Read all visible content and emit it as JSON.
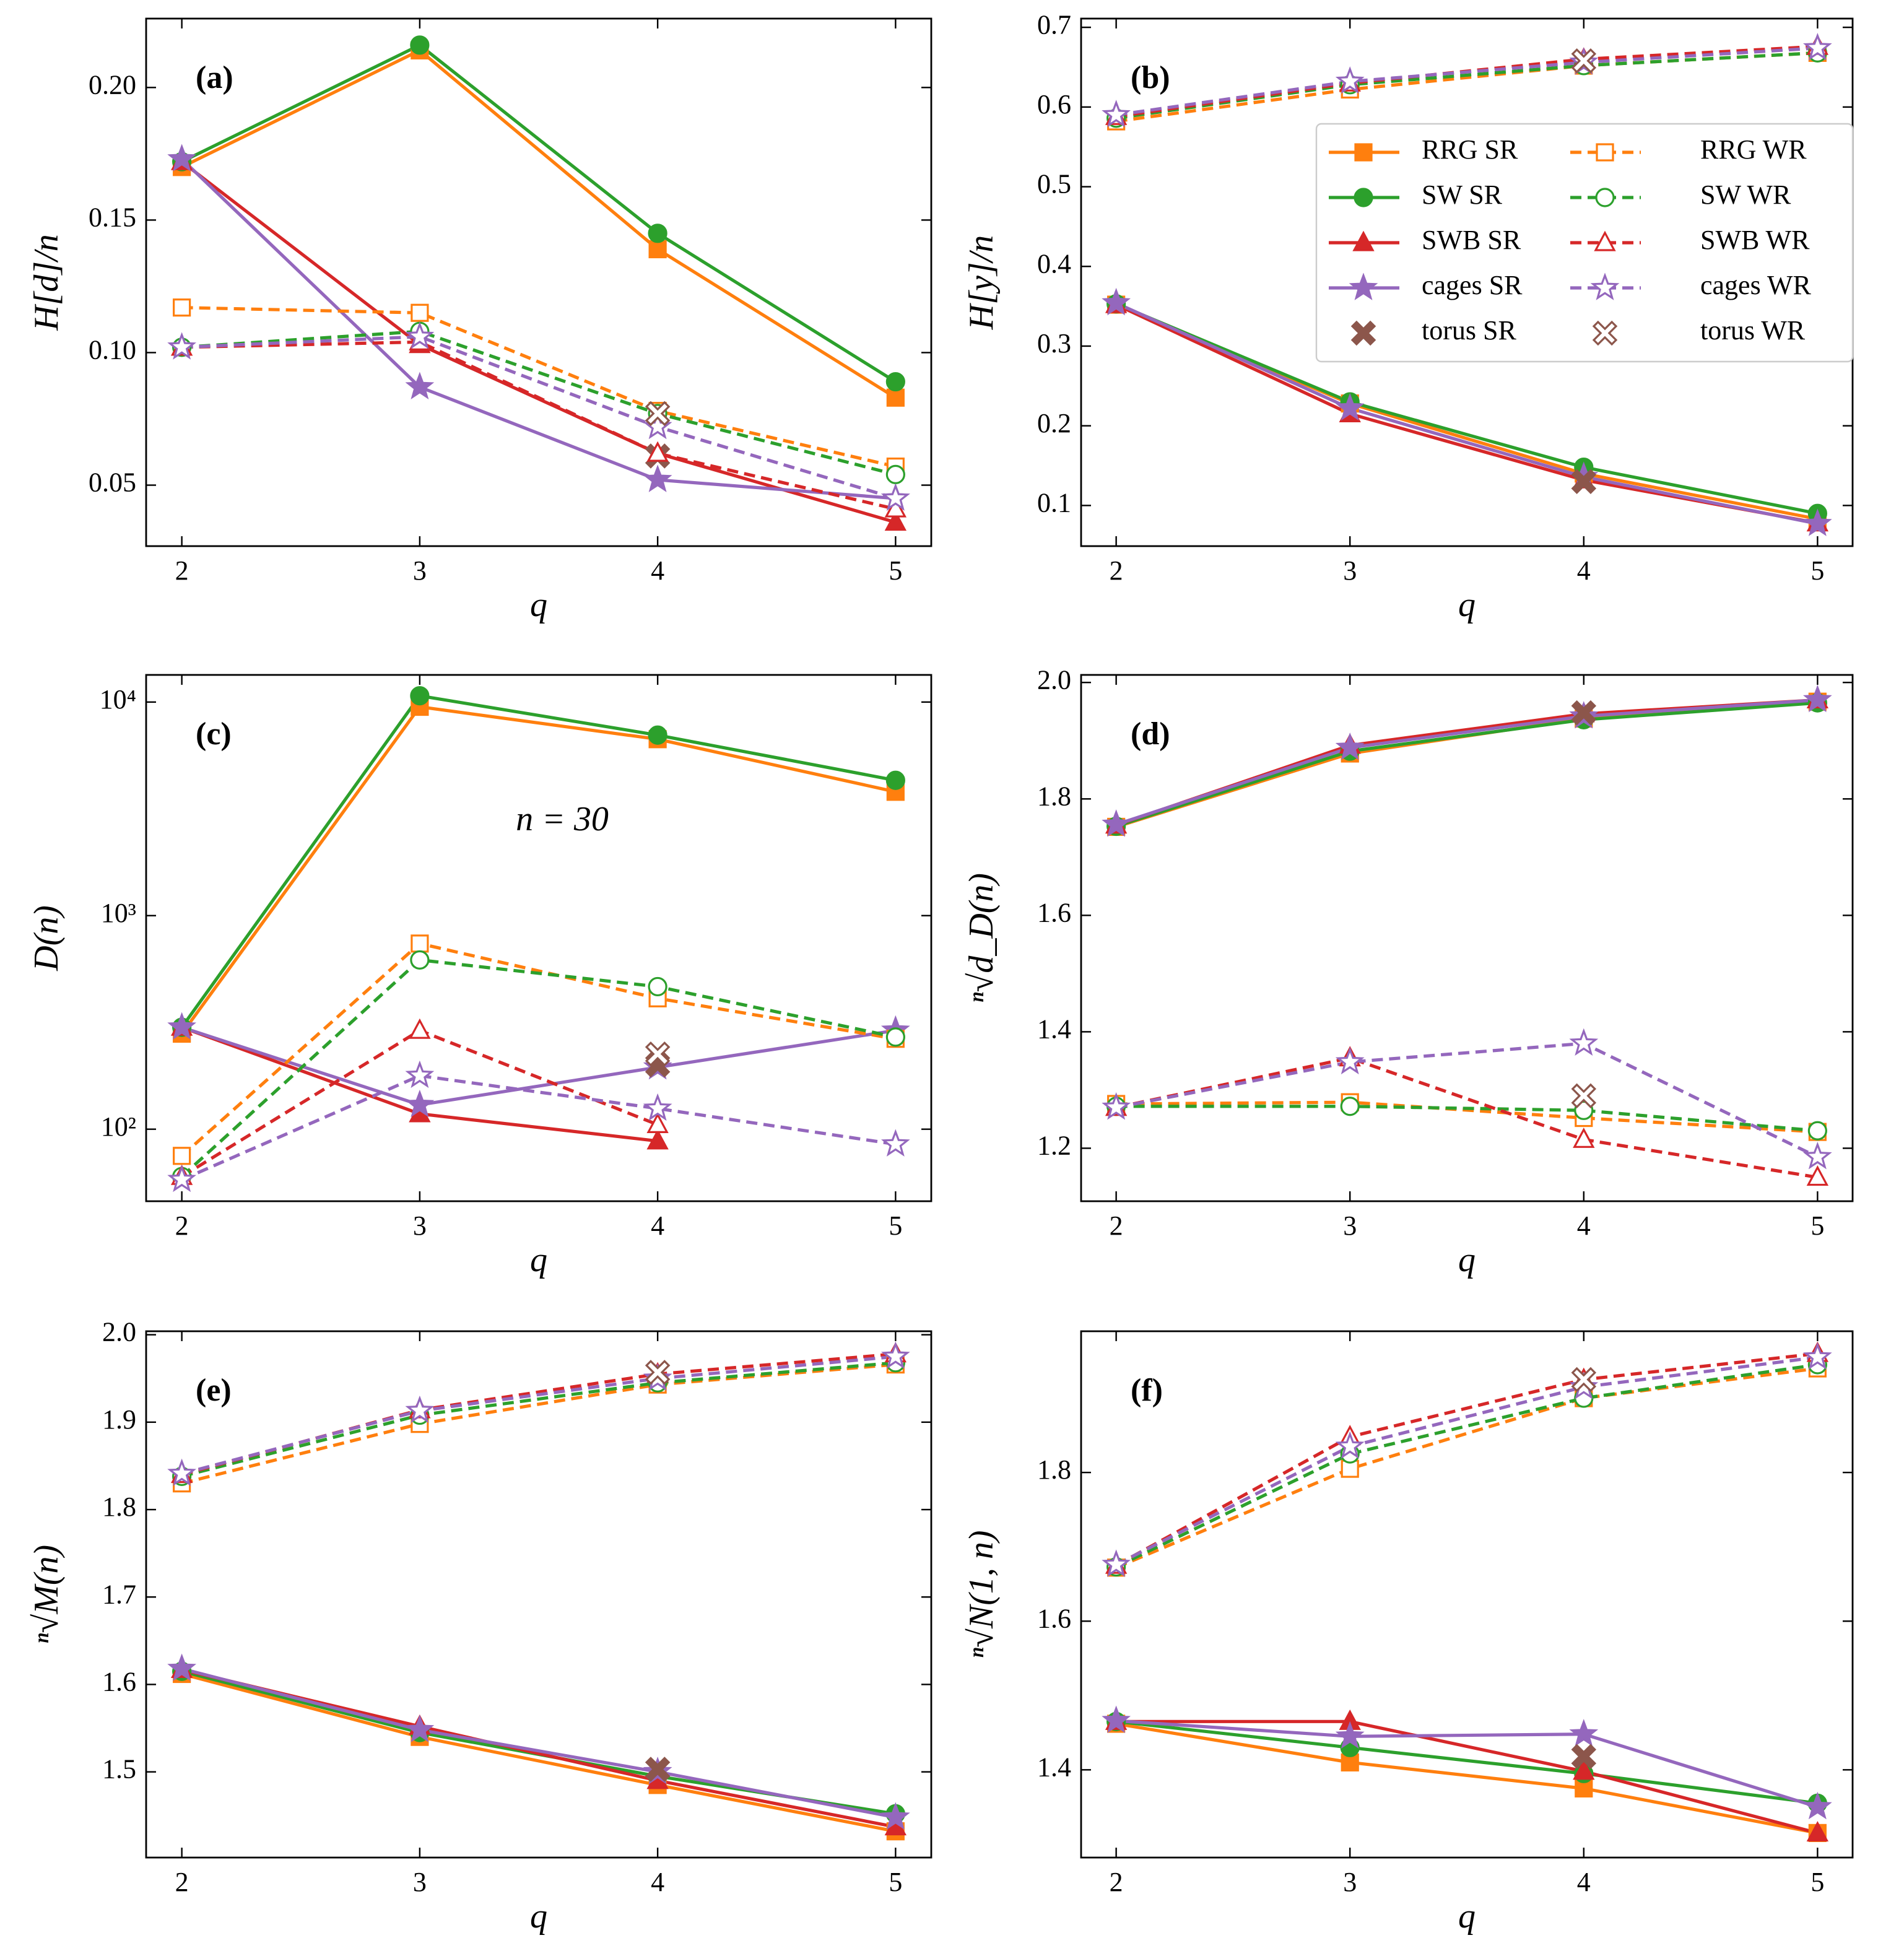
{
  "chart_data": [
    {
      "type": "line",
      "panel_label": "(a)",
      "x_label": "q",
      "y_label": "H[d]/n",
      "x": [
        2,
        3,
        4,
        5
      ],
      "xlim": [
        1.85,
        5.15
      ],
      "xticks": [
        2,
        3,
        4,
        5
      ],
      "ylim": [
        0.027,
        0.226
      ],
      "yticks": [
        0.05,
        {
          "value": 0.1,
          "label": "0.10"
        },
        0.15,
        {
          "value": 0.2,
          "label": "0.20"
        }
      ],
      "series": [
        {
          "name": "RRG SR",
          "color": "#ff7f0e",
          "marker": "square",
          "filled": true,
          "linestyle": "solid",
          "values": [
            0.17,
            0.214,
            0.139,
            0.083
          ]
        },
        {
          "name": "SW SR",
          "color": "#2ca02c",
          "marker": "circle",
          "filled": true,
          "linestyle": "solid",
          "values": [
            0.172,
            0.216,
            0.145,
            0.089
          ]
        },
        {
          "name": "SWB SR",
          "color": "#d62728",
          "marker": "triangle",
          "filled": true,
          "linestyle": "solid",
          "values": [
            0.172,
            0.103,
            0.062,
            0.036
          ]
        },
        {
          "name": "cages SR",
          "color": "#9467bd",
          "marker": "star",
          "filled": true,
          "linestyle": "solid",
          "values": [
            0.173,
            0.087,
            0.052,
            0.045
          ]
        },
        {
          "name": "torus SR",
          "color": "#8c564b",
          "marker": "x",
          "filled": true,
          "linestyle": "none",
          "values": [
            null,
            null,
            0.061,
            null
          ]
        },
        {
          "name": "RRG WR",
          "color": "#ff7f0e",
          "marker": "square",
          "filled": false,
          "linestyle": "dashed",
          "values": [
            0.117,
            0.115,
            0.078,
            0.057
          ]
        },
        {
          "name": "SW WR",
          "color": "#2ca02c",
          "marker": "circle",
          "filled": false,
          "linestyle": "dashed",
          "values": [
            0.102,
            0.108,
            0.077,
            0.054
          ]
        },
        {
          "name": "SWB WR",
          "color": "#d62728",
          "marker": "triangle",
          "filled": false,
          "linestyle": "dashed",
          "values": [
            0.102,
            0.104,
            0.062,
            0.041
          ]
        },
        {
          "name": "cages WR",
          "color": "#9467bd",
          "marker": "star",
          "filled": false,
          "linestyle": "dashed",
          "values": [
            0.102,
            0.106,
            0.072,
            0.045
          ]
        },
        {
          "name": "torus WR",
          "color": "#8c564b",
          "marker": "x",
          "filled": false,
          "linestyle": "none",
          "values": [
            null,
            null,
            0.077,
            null
          ]
        }
      ]
    },
    {
      "type": "line",
      "panel_label": "(b)",
      "x_label": "q",
      "y_label": "H[y]/n",
      "legend": "upper right",
      "x": [
        2,
        3,
        4,
        5
      ],
      "xlim": [
        1.85,
        5.15
      ],
      "xticks": [
        2,
        3,
        4,
        5
      ],
      "ylim": [
        0.049,
        0.711
      ],
      "yticks": [
        0.1,
        0.2,
        0.3,
        0.4,
        0.5,
        0.6,
        0.7
      ],
      "series": [
        {
          "name": "RRG SR",
          "color": "#ff7f0e",
          "marker": "square",
          "filled": true,
          "linestyle": "solid",
          "values": [
            0.352,
            0.228,
            0.14,
            0.083
          ]
        },
        {
          "name": "SW SR",
          "color": "#2ca02c",
          "marker": "circle",
          "filled": true,
          "linestyle": "solid",
          "values": [
            0.353,
            0.23,
            0.148,
            0.09
          ]
        },
        {
          "name": "SWB SR",
          "color": "#d62728",
          "marker": "triangle",
          "filled": true,
          "linestyle": "solid",
          "values": [
            0.352,
            0.215,
            0.132,
            0.078
          ]
        },
        {
          "name": "cages SR",
          "color": "#9467bd",
          "marker": "star",
          "filled": true,
          "linestyle": "solid",
          "values": [
            0.354,
            0.222,
            0.136,
            0.077
          ]
        },
        {
          "name": "torus SR",
          "color": "#8c564b",
          "marker": "x",
          "filled": true,
          "linestyle": "none",
          "values": [
            null,
            null,
            0.13,
            null
          ]
        },
        {
          "name": "RRG WR",
          "color": "#ff7f0e",
          "marker": "square",
          "filled": false,
          "linestyle": "dashed",
          "values": [
            0.582,
            0.622,
            0.652,
            0.668
          ]
        },
        {
          "name": "SW WR",
          "color": "#2ca02c",
          "marker": "circle",
          "filled": false,
          "linestyle": "dashed",
          "values": [
            0.586,
            0.628,
            0.652,
            0.668
          ]
        },
        {
          "name": "SWB WR",
          "color": "#d62728",
          "marker": "triangle",
          "filled": false,
          "linestyle": "dashed",
          "values": [
            0.588,
            0.63,
            0.66,
            0.676
          ]
        },
        {
          "name": "cages WR",
          "color": "#9467bd",
          "marker": "star",
          "filled": false,
          "linestyle": "dashed",
          "values": [
            0.59,
            0.632,
            0.656,
            0.674
          ]
        },
        {
          "name": "torus WR",
          "color": "#8c564b",
          "marker": "x",
          "filled": false,
          "linestyle": "none",
          "values": [
            null,
            null,
            0.658,
            null
          ]
        }
      ]
    },
    {
      "type": "line",
      "panel_label": "(c)",
      "x_label": "q",
      "y_label": "D(n)",
      "annotation": "n = 30",
      "log_scale": true,
      "x": [
        2,
        3,
        4,
        5
      ],
      "xlim": [
        1.85,
        5.15
      ],
      "xticks": [
        2,
        3,
        4,
        5
      ],
      "ylim": [
        46,
        13400
      ],
      "yticks": [
        {
          "value": 100,
          "label": "10²"
        },
        {
          "value": 1000,
          "label": "10³"
        },
        {
          "value": 10000,
          "label": "10⁴"
        }
      ],
      "series": [
        {
          "name": "RRG SR",
          "color": "#ff7f0e",
          "marker": "square",
          "filled": true,
          "linestyle": "solid",
          "values": [
            280,
            9500,
            6700,
            3800
          ]
        },
        {
          "name": "SW SR",
          "color": "#2ca02c",
          "marker": "circle",
          "filled": true,
          "linestyle": "solid",
          "values": [
            300,
            10700,
            7000,
            4300
          ]
        },
        {
          "name": "SWB SR",
          "color": "#d62728",
          "marker": "triangle",
          "filled": true,
          "linestyle": "solid",
          "values": [
            300,
            118,
            88,
            null
          ]
        },
        {
          "name": "cages SR",
          "color": "#9467bd",
          "marker": "star",
          "filled": true,
          "linestyle": "solid",
          "values": [
            300,
            130,
            195,
            290
          ]
        },
        {
          "name": "torus SR",
          "color": "#8c564b",
          "marker": "x",
          "filled": true,
          "linestyle": "none",
          "values": [
            null,
            null,
            200,
            null
          ]
        },
        {
          "name": "RRG WR",
          "color": "#ff7f0e",
          "marker": "square",
          "filled": false,
          "linestyle": "dashed",
          "values": [
            75,
            740,
            410,
            265
          ]
        },
        {
          "name": "SW WR",
          "color": "#2ca02c",
          "marker": "circle",
          "filled": false,
          "linestyle": "dashed",
          "values": [
            60,
            620,
            465,
            270
          ]
        },
        {
          "name": "SWB WR",
          "color": "#d62728",
          "marker": "triangle",
          "filled": false,
          "linestyle": "dashed",
          "values": [
            60,
            290,
            105,
            null
          ]
        },
        {
          "name": "cages WR",
          "color": "#9467bd",
          "marker": "star",
          "filled": false,
          "linestyle": "dashed",
          "values": [
            58,
            178,
            125,
            85
          ]
        },
        {
          "name": "torus WR",
          "color": "#8c564b",
          "marker": "x",
          "filled": false,
          "linestyle": "none",
          "values": [
            null,
            null,
            225,
            null
          ]
        }
      ]
    },
    {
      "type": "line",
      "panel_label": "(d)",
      "x_label": "q",
      "y_label": "ⁿ√d_D(n)",
      "x": [
        2,
        3,
        4,
        5
      ],
      "xlim": [
        1.85,
        5.15
      ],
      "xticks": [
        2,
        3,
        4,
        5
      ],
      "ylim": [
        1.109,
        2.013
      ],
      "yticks": [
        1.2,
        1.4,
        1.6,
        1.8,
        {
          "value": 2,
          "label": "2.0"
        }
      ],
      "series": [
        {
          "name": "RRG SR",
          "color": "#ff7f0e",
          "marker": "square",
          "filled": true,
          "linestyle": "solid",
          "values": [
            1.752,
            1.878,
            1.938,
            1.967
          ]
        },
        {
          "name": "SW SR",
          "color": "#2ca02c",
          "marker": "circle",
          "filled": true,
          "linestyle": "solid",
          "values": [
            1.753,
            1.882,
            1.936,
            1.965
          ]
        },
        {
          "name": "SWB SR",
          "color": "#d62728",
          "marker": "triangle",
          "filled": true,
          "linestyle": "solid",
          "values": [
            1.755,
            1.892,
            1.946,
            1.97
          ]
        },
        {
          "name": "cages SR",
          "color": "#9467bd",
          "marker": "star",
          "filled": true,
          "linestyle": "solid",
          "values": [
            1.756,
            1.888,
            1.942,
            1.97
          ]
        },
        {
          "name": "torus SR",
          "color": "#8c564b",
          "marker": "x",
          "filled": true,
          "linestyle": "none",
          "values": [
            null,
            null,
            1.948,
            null
          ]
        },
        {
          "name": "RRG WR",
          "color": "#ff7f0e",
          "marker": "square",
          "filled": false,
          "linestyle": "dashed",
          "values": [
            1.276,
            1.279,
            1.252,
            1.228
          ]
        },
        {
          "name": "SW WR",
          "color": "#2ca02c",
          "marker": "circle",
          "filled": false,
          "linestyle": "dashed",
          "values": [
            1.272,
            1.272,
            1.265,
            1.23
          ]
        },
        {
          "name": "SWB WR",
          "color": "#d62728",
          "marker": "triangle",
          "filled": false,
          "linestyle": "dashed",
          "values": [
            1.27,
            1.355,
            1.215,
            1.15
          ]
        },
        {
          "name": "cages WR",
          "color": "#9467bd",
          "marker": "star",
          "filled": false,
          "linestyle": "dashed",
          "values": [
            1.27,
            1.348,
            1.38,
            1.185
          ]
        },
        {
          "name": "torus WR",
          "color": "#8c564b",
          "marker": "x",
          "filled": false,
          "linestyle": "none",
          "values": [
            null,
            null,
            1.29,
            null
          ]
        }
      ]
    },
    {
      "type": "line",
      "panel_label": "(e)",
      "x_label": "q",
      "y_label": "ⁿ√M(n)",
      "x": [
        2,
        3,
        4,
        5
      ],
      "xlim": [
        1.85,
        5.15
      ],
      "xticks": [
        2,
        3,
        4,
        5
      ],
      "ylim": [
        1.402,
        2.004
      ],
      "yticks": [
        1.5,
        1.6,
        1.7,
        1.8,
        1.9,
        {
          "value": 2,
          "label": "2.0"
        }
      ],
      "series": [
        {
          "name": "RRG SR",
          "color": "#ff7f0e",
          "marker": "square",
          "filled": true,
          "linestyle": "solid",
          "values": [
            1.612,
            1.54,
            1.485,
            1.432
          ]
        },
        {
          "name": "SW SR",
          "color": "#2ca02c",
          "marker": "circle",
          "filled": true,
          "linestyle": "solid",
          "values": [
            1.615,
            1.545,
            1.495,
            1.452
          ]
        },
        {
          "name": "SWB SR",
          "color": "#d62728",
          "marker": "triangle",
          "filled": true,
          "linestyle": "solid",
          "values": [
            1.617,
            1.552,
            1.49,
            1.437
          ]
        },
        {
          "name": "cages SR",
          "color": "#9467bd",
          "marker": "star",
          "filled": true,
          "linestyle": "solid",
          "values": [
            1.618,
            1.548,
            1.5,
            1.448
          ]
        },
        {
          "name": "torus SR",
          "color": "#8c564b",
          "marker": "x",
          "filled": true,
          "linestyle": "none",
          "values": [
            null,
            null,
            1.503,
            null
          ]
        },
        {
          "name": "RRG WR",
          "color": "#ff7f0e",
          "marker": "square",
          "filled": false,
          "linestyle": "dashed",
          "values": [
            1.83,
            1.898,
            1.943,
            1.966
          ]
        },
        {
          "name": "SW WR",
          "color": "#2ca02c",
          "marker": "circle",
          "filled": false,
          "linestyle": "dashed",
          "values": [
            1.838,
            1.908,
            1.945,
            1.968
          ]
        },
        {
          "name": "SWB WR",
          "color": "#d62728",
          "marker": "triangle",
          "filled": false,
          "linestyle": "dashed",
          "values": [
            1.84,
            1.914,
            1.955,
            1.978
          ]
        },
        {
          "name": "cages WR",
          "color": "#9467bd",
          "marker": "star",
          "filled": false,
          "linestyle": "dashed",
          "values": [
            1.841,
            1.913,
            1.95,
            1.975
          ]
        },
        {
          "name": "torus WR",
          "color": "#8c564b",
          "marker": "x",
          "filled": false,
          "linestyle": "none",
          "values": [
            null,
            null,
            1.957,
            null
          ]
        }
      ]
    },
    {
      "type": "line",
      "panel_label": "(f)",
      "x_label": "q",
      "y_label": "ⁿ√N(1, n)",
      "x": [
        2,
        3,
        4,
        5
      ],
      "xlim": [
        1.85,
        5.15
      ],
      "xticks": [
        2,
        3,
        4,
        5
      ],
      "ylim": [
        1.282,
        1.99
      ],
      "yticks": [
        1.4,
        1.6,
        1.8
      ],
      "series": [
        {
          "name": "RRG SR",
          "color": "#ff7f0e",
          "marker": "square",
          "filled": true,
          "linestyle": "solid",
          "values": [
            1.462,
            1.41,
            1.375,
            1.315
          ]
        },
        {
          "name": "SW SR",
          "color": "#2ca02c",
          "marker": "circle",
          "filled": true,
          "linestyle": "solid",
          "values": [
            1.465,
            1.43,
            1.395,
            1.355
          ]
        },
        {
          "name": "SWB SR",
          "color": "#d62728",
          "marker": "triangle",
          "filled": true,
          "linestyle": "solid",
          "values": [
            1.465,
            1.465,
            1.398,
            1.315
          ]
        },
        {
          "name": "cages SR",
          "color": "#9467bd",
          "marker": "star",
          "filled": true,
          "linestyle": "solid",
          "values": [
            1.466,
            1.445,
            1.448,
            1.35
          ]
        },
        {
          "name": "torus SR",
          "color": "#8c564b",
          "marker": "x",
          "filled": true,
          "linestyle": "none",
          "values": [
            null,
            null,
            1.418,
            null
          ]
        },
        {
          "name": "RRG WR",
          "color": "#ff7f0e",
          "marker": "square",
          "filled": false,
          "linestyle": "dashed",
          "values": [
            1.672,
            1.805,
            1.9,
            1.94
          ]
        },
        {
          "name": "SW WR",
          "color": "#2ca02c",
          "marker": "circle",
          "filled": false,
          "linestyle": "dashed",
          "values": [
            1.673,
            1.825,
            1.9,
            1.945
          ]
        },
        {
          "name": "SWB WR",
          "color": "#d62728",
          "marker": "triangle",
          "filled": false,
          "linestyle": "dashed",
          "values": [
            1.675,
            1.848,
            1.925,
            1.96
          ]
        },
        {
          "name": "cages WR",
          "color": "#9467bd",
          "marker": "star",
          "filled": false,
          "linestyle": "dashed",
          "values": [
            1.676,
            1.835,
            1.915,
            1.955
          ]
        },
        {
          "name": "torus WR",
          "color": "#8c564b",
          "marker": "x",
          "filled": false,
          "linestyle": "none",
          "values": [
            null,
            null,
            1.925,
            null
          ]
        }
      ]
    }
  ]
}
